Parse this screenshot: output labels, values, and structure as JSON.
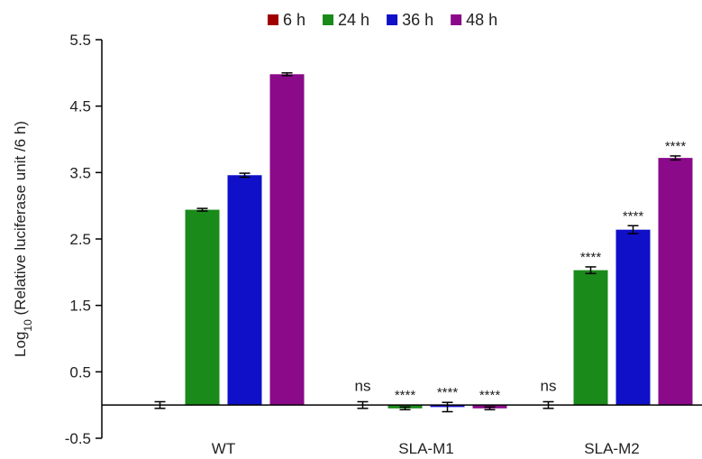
{
  "chart_data": {
    "type": "bar",
    "ylabel_prefix": "Log",
    "ylabel_sub": "10",
    "ylabel_rest": " (Relative luciferase unit /6 h)",
    "ylim": [
      -0.5,
      5.5
    ],
    "yticks": [
      "5.5",
      "4.5",
      "3.5",
      "2.5",
      "1.5",
      "0.5",
      "-0.5"
    ],
    "categories": [
      "WT",
      "SLA-M1",
      "SLA-M2"
    ],
    "legend_position": "top",
    "series": [
      {
        "name": "6 h",
        "color": "#a00000",
        "values": [
          0.0,
          0.0,
          0.0
        ],
        "errors": [
          0.05,
          0.05,
          0.05
        ],
        "annotations": [
          "",
          "ns",
          "ns"
        ]
      },
      {
        "name": "24 h",
        "color": "#1a8a1a",
        "values": [
          2.94,
          -0.05,
          2.03
        ],
        "errors": [
          0.02,
          0.02,
          0.05
        ],
        "annotations": [
          "",
          "****",
          "****"
        ]
      },
      {
        "name": "36 h",
        "color": "#1010c8",
        "values": [
          3.46,
          -0.03,
          2.64
        ],
        "errors": [
          0.03,
          0.07,
          0.06
        ],
        "annotations": [
          "",
          "****",
          "****"
        ]
      },
      {
        "name": "48 h",
        "color": "#8a0a8a",
        "values": [
          4.98,
          -0.05,
          3.72
        ],
        "errors": [
          0.02,
          0.02,
          0.03
        ],
        "annotations": [
          "",
          "****",
          "****"
        ]
      }
    ]
  }
}
